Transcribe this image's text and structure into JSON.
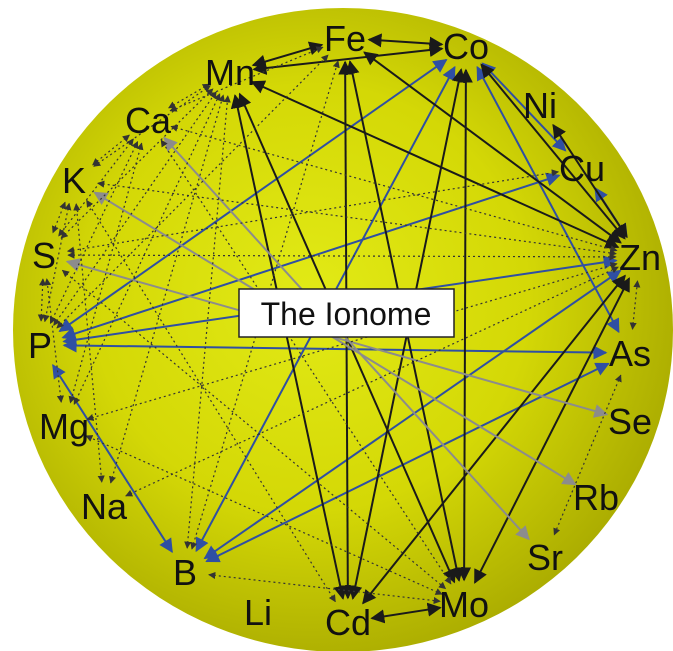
{
  "title": "The Ionome",
  "colors": {
    "black": "#1a1a1a",
    "blue": "#2f4fa3",
    "gray": "#8c8c8c",
    "dotted": "#333333",
    "circle_inner": "#e2ea16",
    "circle_outer": "#a7a800"
  },
  "nodes": [
    {
      "id": "Fe",
      "label": "Fe"
    },
    {
      "id": "Co",
      "label": "Co"
    },
    {
      "id": "Mn",
      "label": "Mn"
    },
    {
      "id": "Ni",
      "label": "Ni"
    },
    {
      "id": "Ca",
      "label": "Ca"
    },
    {
      "id": "Cu",
      "label": "Cu"
    },
    {
      "id": "K",
      "label": "K"
    },
    {
      "id": "S",
      "label": "S"
    },
    {
      "id": "Zn",
      "label": "Zn"
    },
    {
      "id": "P",
      "label": "P"
    },
    {
      "id": "As",
      "label": "As"
    },
    {
      "id": "Mg",
      "label": "Mg"
    },
    {
      "id": "Se",
      "label": "Se"
    },
    {
      "id": "Na",
      "label": "Na"
    },
    {
      "id": "Rb",
      "label": "Rb"
    },
    {
      "id": "B",
      "label": "B"
    },
    {
      "id": "Sr",
      "label": "Sr"
    },
    {
      "id": "Li",
      "label": "Li"
    },
    {
      "id": "Cd",
      "label": "Cd"
    },
    {
      "id": "Mo",
      "label": "Mo"
    }
  ],
  "edges": [
    {
      "from": "Mn",
      "to": "Fe",
      "style": "solid",
      "color": "black",
      "dir": "both"
    },
    {
      "from": "Fe",
      "to": "Co",
      "style": "solid",
      "color": "black",
      "dir": "both"
    },
    {
      "from": "Cd",
      "to": "Mo",
      "style": "solid",
      "color": "black",
      "dir": "both"
    },
    {
      "from": "P",
      "to": "B",
      "style": "solid",
      "color": "blue",
      "dir": "both"
    },
    {
      "from": "Co",
      "to": "Cu",
      "style": "solid",
      "color": "blue",
      "dir": "both"
    },
    {
      "from": "Cu",
      "to": "Zn",
      "style": "solid",
      "color": "blue",
      "dir": "both"
    },
    {
      "from": "Co",
      "to": "As",
      "style": "solid",
      "color": "blue",
      "dir": "both"
    },
    {
      "from": "P",
      "to": "Co",
      "style": "solid",
      "color": "blue",
      "dir": "both"
    },
    {
      "from": "P",
      "to": "Zn",
      "style": "solid",
      "color": "blue",
      "dir": "both"
    },
    {
      "from": "P",
      "to": "As",
      "style": "solid",
      "color": "blue",
      "dir": "both"
    },
    {
      "from": "P",
      "to": "Cu",
      "style": "solid",
      "color": "blue",
      "dir": "both"
    },
    {
      "from": "B",
      "to": "Co",
      "style": "solid",
      "color": "blue",
      "dir": "both"
    },
    {
      "from": "B",
      "to": "As",
      "style": "solid",
      "color": "blue",
      "dir": "both"
    },
    {
      "from": "B",
      "to": "Zn",
      "style": "solid",
      "color": "blue",
      "dir": "both"
    },
    {
      "from": "Fe",
      "to": "Cd",
      "style": "solid",
      "color": "black",
      "dir": "both"
    },
    {
      "from": "Fe",
      "to": "Mo",
      "style": "solid",
      "color": "black",
      "dir": "both"
    },
    {
      "from": "Co",
      "to": "Mo",
      "style": "solid",
      "color": "black",
      "dir": "both"
    },
    {
      "from": "Co",
      "to": "Cd",
      "style": "solid",
      "color": "black",
      "dir": "both"
    },
    {
      "from": "Co",
      "to": "Zn",
      "style": "solid",
      "color": "black",
      "dir": "both"
    },
    {
      "from": "Mn",
      "to": "Mo",
      "style": "solid",
      "color": "black",
      "dir": "both"
    },
    {
      "from": "Mn",
      "to": "Zn",
      "style": "solid",
      "color": "black",
      "dir": "both"
    },
    {
      "from": "Mn",
      "to": "Cd",
      "style": "solid",
      "color": "black",
      "dir": "both"
    },
    {
      "from": "Mn",
      "to": "Co",
      "style": "solid",
      "color": "black",
      "dir": "both"
    },
    {
      "from": "Fe",
      "to": "Zn",
      "style": "solid",
      "color": "black",
      "dir": "both"
    },
    {
      "from": "Zn",
      "to": "Cd",
      "style": "solid",
      "color": "black",
      "dir": "both"
    },
    {
      "from": "Zn",
      "to": "Mo",
      "style": "solid",
      "color": "black",
      "dir": "both"
    },
    {
      "from": "Ni",
      "to": "Zn",
      "style": "solid",
      "color": "black",
      "dir": "both"
    },
    {
      "from": "Ca",
      "to": "Sr",
      "style": "solid",
      "color": "gray",
      "dir": "both"
    },
    {
      "from": "K",
      "to": "Rb",
      "style": "solid",
      "color": "gray",
      "dir": "both"
    },
    {
      "from": "S",
      "to": "Se",
      "style": "solid",
      "color": "gray",
      "dir": "both"
    },
    {
      "from": "Ca",
      "to": "Mn",
      "style": "dotted",
      "color": "dotted",
      "dir": "both"
    },
    {
      "from": "Ca",
      "to": "K",
      "style": "dotted",
      "color": "dotted",
      "dir": "both"
    },
    {
      "from": "Ca",
      "to": "S",
      "style": "dotted",
      "color": "dotted",
      "dir": "both"
    },
    {
      "from": "Ca",
      "to": "P",
      "style": "dotted",
      "color": "dotted",
      "dir": "both"
    },
    {
      "from": "Ca",
      "to": "Mg",
      "style": "dotted",
      "color": "dotted",
      "dir": "both"
    },
    {
      "from": "Ca",
      "to": "Fe",
      "style": "dotted",
      "color": "dotted",
      "dir": "both"
    },
    {
      "from": "Ca",
      "to": "Zn",
      "style": "dotted",
      "color": "dotted",
      "dir": "both"
    },
    {
      "from": "K",
      "to": "S",
      "style": "dotted",
      "color": "dotted",
      "dir": "both"
    },
    {
      "from": "K",
      "to": "P",
      "style": "dotted",
      "color": "dotted",
      "dir": "both"
    },
    {
      "from": "K",
      "to": "Mn",
      "style": "dotted",
      "color": "dotted",
      "dir": "both"
    },
    {
      "from": "K",
      "to": "Zn",
      "style": "dotted",
      "color": "dotted",
      "dir": "both"
    },
    {
      "from": "K",
      "to": "Na",
      "style": "dotted",
      "color": "dotted",
      "dir": "both"
    },
    {
      "from": "S",
      "to": "P",
      "style": "dotted",
      "color": "dotted",
      "dir": "both"
    },
    {
      "from": "S",
      "to": "Zn",
      "style": "dotted",
      "color": "dotted",
      "dir": "both"
    },
    {
      "from": "S",
      "to": "Mn",
      "style": "dotted",
      "color": "dotted",
      "dir": "both"
    },
    {
      "from": "S",
      "to": "Mo",
      "style": "dotted",
      "color": "dotted",
      "dir": "both"
    },
    {
      "from": "S",
      "to": "Cu",
      "style": "dotted",
      "color": "dotted",
      "dir": "both"
    },
    {
      "from": "Mg",
      "to": "Mn",
      "style": "dotted",
      "color": "dotted",
      "dir": "both"
    },
    {
      "from": "Mg",
      "to": "S",
      "style": "dotted",
      "color": "dotted",
      "dir": "both"
    },
    {
      "from": "Mg",
      "to": "Zn",
      "style": "dotted",
      "color": "dotted",
      "dir": "both"
    },
    {
      "from": "Na",
      "to": "Zn",
      "style": "dotted",
      "color": "dotted",
      "dir": "both"
    },
    {
      "from": "Na",
      "to": "Mn",
      "style": "dotted",
      "color": "dotted",
      "dir": "both"
    },
    {
      "from": "B",
      "to": "Mn",
      "style": "dotted",
      "color": "dotted",
      "dir": "both"
    },
    {
      "from": "B",
      "to": "Mo",
      "style": "dotted",
      "color": "dotted",
      "dir": "both"
    },
    {
      "from": "B",
      "to": "Fe",
      "style": "dotted",
      "color": "dotted",
      "dir": "both"
    },
    {
      "from": "Cd",
      "to": "K",
      "style": "dotted",
      "color": "dotted",
      "dir": "both"
    },
    {
      "from": "Mo",
      "to": "Ca",
      "style": "dotted",
      "color": "dotted",
      "dir": "both"
    },
    {
      "from": "Mo",
      "to": "Mg",
      "style": "dotted",
      "color": "dotted",
      "dir": "both"
    },
    {
      "from": "As",
      "to": "Zn",
      "style": "dotted",
      "color": "dotted",
      "dir": "both"
    },
    {
      "from": "As",
      "to": "Sr",
      "style": "dotted",
      "color": "dotted",
      "dir": "both"
    },
    {
      "from": "P",
      "to": "Mn",
      "style": "dotted",
      "color": "dotted",
      "dir": "both"
    },
    {
      "from": "P",
      "to": "Fe",
      "style": "dotted",
      "color": "dotted",
      "dir": "both"
    }
  ]
}
